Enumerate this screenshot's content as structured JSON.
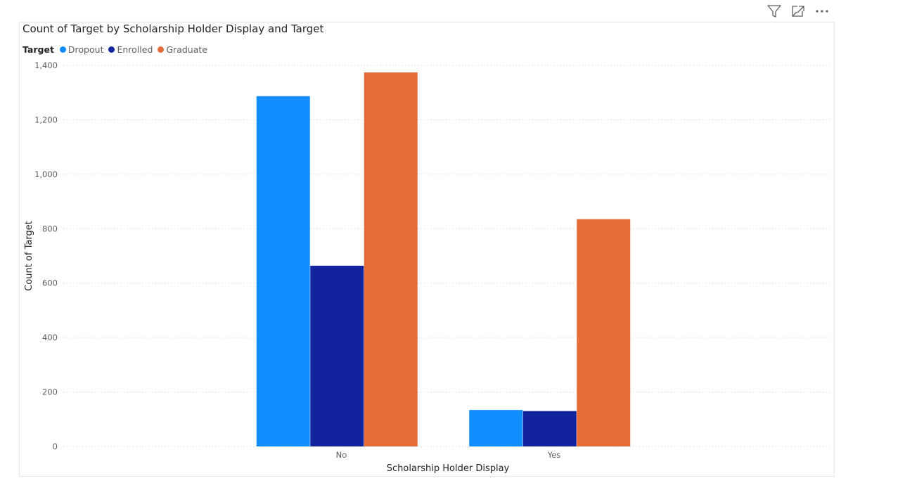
{
  "chart_data": {
    "type": "bar",
    "title": "Count of Target by Scholarship Holder Display and Target",
    "xlabel": "Scholarship Holder Display",
    "ylabel": "Count of Target",
    "categories": [
      "No",
      "Yes"
    ],
    "series": [
      {
        "name": "Dropout",
        "values": [
          1287,
          134
        ],
        "color": "#118dff"
      },
      {
        "name": "Enrolled",
        "values": [
          664,
          130
        ],
        "color": "#12239e"
      },
      {
        "name": "Graduate",
        "values": [
          1374,
          835
        ],
        "color": "#e66c37"
      }
    ],
    "ylim": [
      0,
      1400
    ],
    "yticks": [
      0,
      200,
      400,
      600,
      800,
      1000,
      1200,
      1400
    ],
    "ytick_labels": [
      "0",
      "200",
      "400",
      "600",
      "800",
      "1,000",
      "1,200",
      "1,400"
    ],
    "legend": {
      "title": "Target",
      "placement": "top-left"
    },
    "grid": true
  },
  "toolbar": {
    "icons": [
      "filter-icon",
      "focus-mode-icon",
      "more-options-icon"
    ]
  }
}
